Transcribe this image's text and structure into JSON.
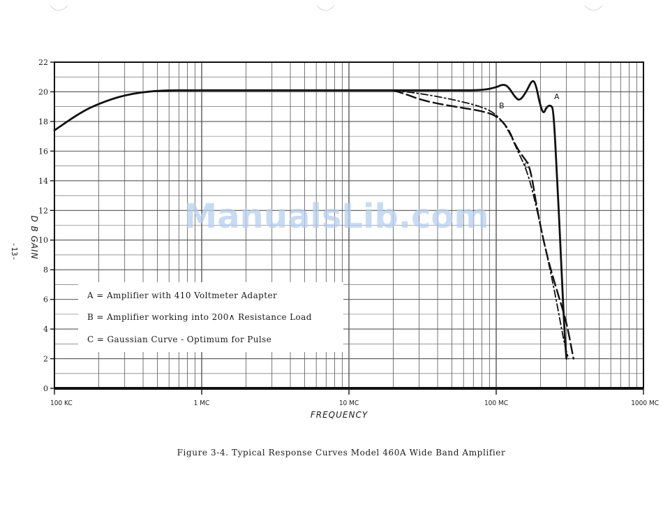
{
  "page_number": "-13-",
  "watermark": "ManualsLib.com",
  "caption": "Figure 3-4.   Typical Response Curves  Model 460A  Wide Band Amplifier",
  "legend": [
    {
      "key": "A",
      "text": "A = Amplifier with 410   Voltmeter Adapter"
    },
    {
      "key": "B",
      "text": "B = Amplifier working into 200∧ Resistance Load"
    },
    {
      "key": "C",
      "text": "C = Gaussian Curve - Optimum for Pulse"
    }
  ],
  "chart_data": {
    "type": "line",
    "title": "",
    "xlabel": "FREQUENCY",
    "ylabel": "D B   GAIN",
    "x_scale": "log",
    "x_unit": "MC",
    "xlim": [
      0.1,
      1000
    ],
    "ylim": [
      0,
      22
    ],
    "grid": true,
    "legend_position": "bottom-left",
    "x_ticks": [
      {
        "value": 0.1,
        "label": "100 KC"
      },
      {
        "value": 1,
        "label": "1 MC"
      },
      {
        "value": 10,
        "label": "10 MC"
      },
      {
        "value": 100,
        "label": "100 MC"
      },
      {
        "value": 1000,
        "label": "1000 MC"
      }
    ],
    "y_ticks": [
      {
        "value": 0,
        "label": "0"
      },
      {
        "value": 2,
        "label": "2"
      },
      {
        "value": 4,
        "label": "4"
      },
      {
        "value": 6,
        "label": "6"
      },
      {
        "value": 8,
        "label": "8"
      },
      {
        "value": 10,
        "label": "10"
      },
      {
        "value": 12,
        "label": "12"
      },
      {
        "value": 14,
        "label": "14"
      },
      {
        "value": 16,
        "label": "16"
      },
      {
        "value": 18,
        "label": "18"
      },
      {
        "value": 20,
        "label": "20"
      },
      {
        "value": 22,
        "label": "22"
      }
    ],
    "series": [
      {
        "name": "A",
        "style": "solid",
        "points": [
          [
            0.1,
            17.4
          ],
          [
            0.15,
            18.6
          ],
          [
            0.2,
            19.2
          ],
          [
            0.3,
            19.8
          ],
          [
            0.5,
            20.1
          ],
          [
            1,
            20.1
          ],
          [
            10,
            20.1
          ],
          [
            50,
            20.1
          ],
          [
            80,
            20.1
          ],
          [
            100,
            20.3
          ],
          [
            110,
            20.5
          ],
          [
            120,
            20.4
          ],
          [
            135,
            19.6
          ],
          [
            145,
            19.4
          ],
          [
            160,
            20.0
          ],
          [
            175,
            20.8
          ],
          [
            185,
            20.6
          ],
          [
            200,
            19.0
          ],
          [
            210,
            18.5
          ],
          [
            220,
            19.0
          ],
          [
            235,
            19.1
          ],
          [
            245,
            18.8
          ],
          [
            260,
            14.0
          ],
          [
            275,
            9.0
          ],
          [
            290,
            4.0
          ],
          [
            300,
            2.0
          ]
        ]
      },
      {
        "name": "B",
        "style": "dashed",
        "points": [
          [
            20,
            20.1
          ],
          [
            25,
            19.8
          ],
          [
            30,
            19.5
          ],
          [
            40,
            19.2
          ],
          [
            60,
            18.9
          ],
          [
            80,
            18.7
          ],
          [
            100,
            18.4
          ],
          [
            120,
            17.6
          ],
          [
            135,
            16.4
          ],
          [
            150,
            15.7
          ],
          [
            170,
            15.0
          ],
          [
            190,
            12.0
          ],
          [
            220,
            9.0
          ],
          [
            260,
            6.5
          ],
          [
            300,
            4.5
          ],
          [
            335,
            2.0
          ]
        ]
      },
      {
        "name": "C",
        "style": "dash-dot",
        "points": [
          [
            20,
            20.1
          ],
          [
            30,
            19.9
          ],
          [
            50,
            19.5
          ],
          [
            80,
            19.0
          ],
          [
            100,
            18.5
          ],
          [
            120,
            17.5
          ],
          [
            140,
            16.0
          ],
          [
            160,
            14.8
          ],
          [
            180,
            13.0
          ],
          [
            210,
            10.0
          ],
          [
            250,
            6.5
          ],
          [
            290,
            3.0
          ],
          [
            310,
            2.0
          ]
        ]
      }
    ]
  }
}
